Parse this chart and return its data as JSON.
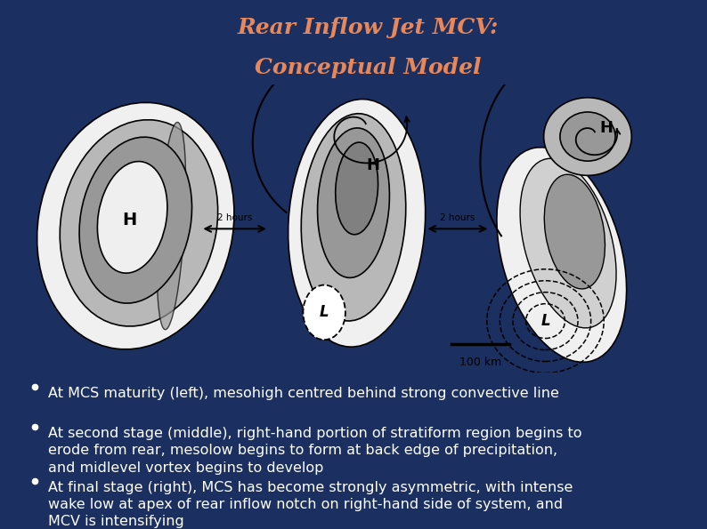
{
  "title_line1": "Rear Inflow Jet MCV:",
  "title_line2": "Conceptual Model",
  "title_color": "#E8875A",
  "background_color": "#1B3060",
  "image_bg": "#FFFFFF",
  "bullet_color": "#FFFFFF",
  "bullet_points": [
    "At MCS maturity (left), mesohigh centred behind strong convective line",
    "At second stage (middle), right-hand portion of stratiform region begins to\nerode from rear, mesolow begins to form at back edge of precipitation,\nand midlevel vortex begins to develop",
    "At final stage (right), MCS has become strongly asymmetric, with intense\nwake low at apex of rear inflow notch on right-hand side of system, and\nMCV is intensifying"
  ],
  "bottom_bar_color1": "#C87040",
  "bottom_bar_color2": "#8B9BB4",
  "title_fontsize": 18,
  "bullet_fontsize": 11.5,
  "gray1": "#D0D0D0",
  "gray2": "#B8B8B8",
  "gray3": "#989898",
  "gray4": "#808080",
  "gray5": "#F0F0F0",
  "white_inner": "#EFEFEF"
}
